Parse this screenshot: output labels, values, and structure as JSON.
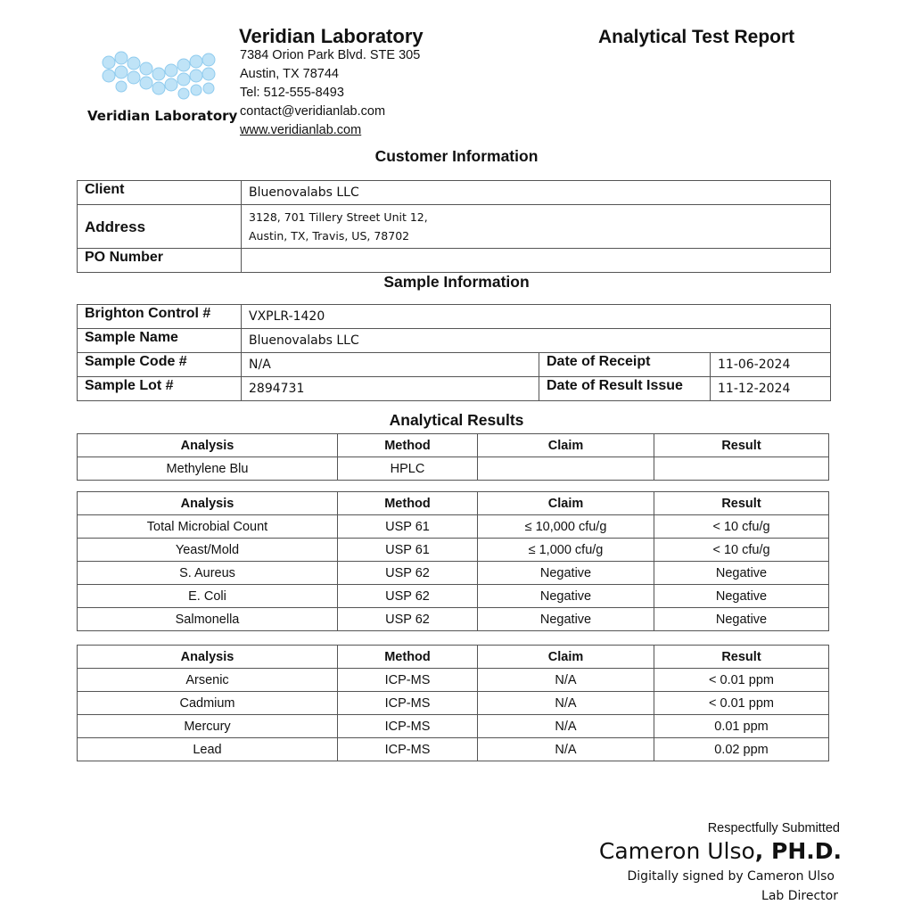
{
  "header": {
    "lab_name": "Veridian Laboratory",
    "logo_text": "Veridian Laboratory",
    "address_line1": "7384 Orion Park Blvd. STE 305",
    "address_line2": "Austin, TX 78744",
    "phone": "Tel: 512-555-8493",
    "email": "contact@veridianlab.com",
    "website": "www.veridianlab.com",
    "report_title": "Analytical Test Report"
  },
  "customer": {
    "title": "Customer Information",
    "client_label": "Client",
    "client": "Bluenovalabs LLC",
    "address_label": "Address",
    "address_line1": "3128, 701 Tillery Street Unit 12,",
    "address_line2": "Austin, TX, Travis, US, 78702",
    "po_label": "PO Number",
    "po": ""
  },
  "sample": {
    "title": "Sample Information",
    "control_label": "Brighton Control #",
    "control": "VXPLR-1420",
    "name_label": "Sample Name",
    "name": "Bluenovalabs LLC",
    "code_label": "Sample Code #",
    "code": "N/A",
    "lot_label": "Sample Lot #",
    "lot": "2894731",
    "receipt_label": "Date of Receipt",
    "receipt": "11-06-2024",
    "issue_label": "Date of Result Issue",
    "issue": "11-12-2024"
  },
  "results": {
    "title": "Analytical Results",
    "headers": [
      "Analysis",
      "Method",
      "Claim",
      "Result"
    ],
    "table1": [
      [
        "Methylene Blu",
        "HPLC",
        "",
        ""
      ]
    ],
    "table2": [
      [
        "Total Microbial Count",
        "USP 61",
        "≤ 10,000 cfu/g",
        "< 10 cfu/g"
      ],
      [
        "Yeast/Mold",
        "USP 61",
        "≤ 1,000 cfu/g",
        "< 10 cfu/g"
      ],
      [
        "S. Aureus",
        "USP 62",
        "Negative",
        "Negative"
      ],
      [
        "E. Coli",
        "USP 62",
        "Negative",
        "Negative"
      ],
      [
        "Salmonella",
        "USP 62",
        "Negative",
        "Negative"
      ]
    ],
    "table3": [
      [
        "Arsenic",
        "ICP-MS",
        "N/A",
        "< 0.01 ppm"
      ],
      [
        "Cadmium",
        "ICP-MS",
        "N/A",
        "< 0.01 ppm"
      ],
      [
        "Mercury",
        "ICP-MS",
        "N/A",
        "0.01 ppm"
      ],
      [
        "Lead",
        "ICP-MS",
        "N/A",
        "0.02 ppm"
      ]
    ]
  },
  "signature": {
    "submitted": "Respectfully Submitted",
    "name": "Cameron Ulso",
    "credential": ", PH.D.",
    "signed": "Digitally signed by Cameron Ulso",
    "role": "Lab Director"
  }
}
